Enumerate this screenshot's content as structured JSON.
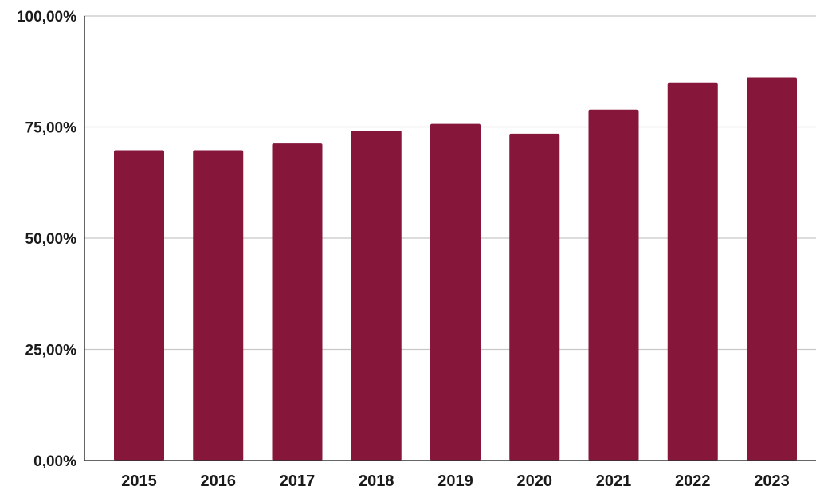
{
  "chart_data": {
    "type": "bar",
    "title": "",
    "xlabel": "",
    "ylabel": "",
    "categories": [
      "2015",
      "2016",
      "2017",
      "2018",
      "2019",
      "2020",
      "2021",
      "2022",
      "2023"
    ],
    "values": [
      69.8,
      69.8,
      71.3,
      74.2,
      75.7,
      73.5,
      78.9,
      85.0,
      86.1
    ],
    "ylim": [
      0,
      100
    ],
    "yticks": [
      0,
      25,
      50,
      75,
      100
    ],
    "ytick_labels": [
      "0,00%",
      "25,00%",
      "50,00%",
      "75,00%",
      "100,00%"
    ],
    "grid": true,
    "legend": "none",
    "bar_color": "#86163a",
    "grid_color": "#c8c8c8"
  }
}
